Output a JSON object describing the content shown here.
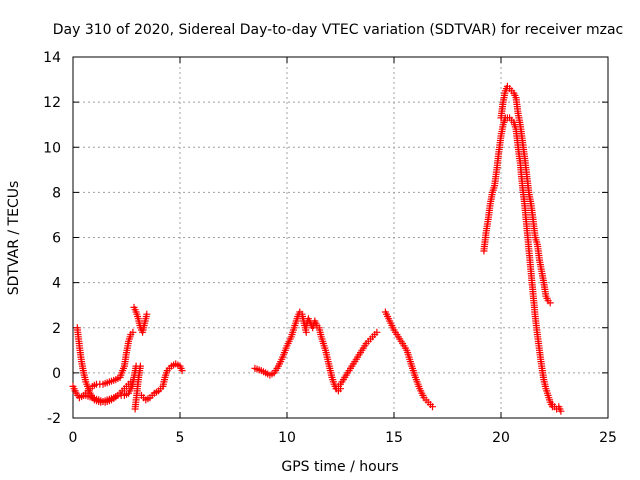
{
  "chart_data": {
    "type": "scatter",
    "title": "Day 310 of 2020, Sidereal Day-to-day VTEC variation (SDTVAR) for receiver mzac",
    "xlabel": "GPS time / hours",
    "ylabel": "SDTVAR / TECUs",
    "xlim": [
      0,
      25
    ],
    "ylim": [
      -2,
      14
    ],
    "xticks": [
      0,
      5,
      10,
      15,
      20,
      25
    ],
    "yticks": [
      -2,
      0,
      2,
      4,
      6,
      8,
      10,
      12,
      14
    ],
    "grid": true,
    "marker": "+",
    "colors": {
      "series": "#ff0000",
      "grid": "#a0a0a0",
      "axis": "#000000"
    },
    "series": [
      {
        "name": "SDTVAR",
        "segments": [
          [
            [
              0.0,
              -0.6
            ],
            [
              0.15,
              -0.9
            ],
            [
              0.3,
              -1.1
            ],
            [
              0.5,
              -1.0
            ],
            [
              0.7,
              -0.8
            ],
            [
              0.9,
              -0.6
            ],
            [
              1.1,
              -0.5
            ],
            [
              1.4,
              -0.5
            ],
            [
              1.7,
              -0.4
            ],
            [
              2.0,
              -0.3
            ],
            [
              2.2,
              -0.2
            ],
            [
              2.4,
              0.3
            ],
            [
              2.5,
              0.9
            ],
            [
              2.6,
              1.4
            ],
            [
              2.7,
              1.7
            ],
            [
              2.8,
              1.8
            ]
          ],
          [
            [
              0.2,
              2.0
            ],
            [
              0.3,
              1.2
            ],
            [
              0.4,
              0.5
            ],
            [
              0.5,
              0.0
            ],
            [
              0.6,
              -0.4
            ],
            [
              0.8,
              -0.9
            ],
            [
              1.0,
              -1.2
            ],
            [
              1.3,
              -1.3
            ],
            [
              1.6,
              -1.2
            ],
            [
              1.9,
              -1.1
            ],
            [
              2.1,
              -1.0
            ],
            [
              2.3,
              -0.8
            ],
            [
              2.5,
              -0.6
            ],
            [
              2.7,
              -0.4
            ],
            [
              2.8,
              -0.5
            ]
          ],
          [
            [
              0.6,
              -1.0
            ],
            [
              0.9,
              -1.1
            ],
            [
              1.2,
              -1.2
            ],
            [
              1.5,
              -1.3
            ],
            [
              1.8,
              -1.2
            ],
            [
              2.1,
              -1.0
            ],
            [
              2.4,
              -1.0
            ],
            [
              2.6,
              -0.9
            ],
            [
              2.75,
              -0.6
            ],
            [
              2.85,
              -0.2
            ],
            [
              2.95,
              0.3
            ]
          ],
          [
            [
              2.9,
              -1.6
            ],
            [
              2.95,
              -1.2
            ],
            [
              3.0,
              -0.8
            ],
            [
              3.05,
              -0.3
            ],
            [
              3.1,
              0.0
            ],
            [
              3.15,
              0.3
            ]
          ],
          [
            [
              2.85,
              2.9
            ],
            [
              2.95,
              2.7
            ],
            [
              3.05,
              2.4
            ],
            [
              3.15,
              2.0
            ],
            [
              3.25,
              1.8
            ],
            [
              3.35,
              2.2
            ],
            [
              3.45,
              2.6
            ]
          ],
          [
            [
              3.2,
              -1.0
            ],
            [
              3.4,
              -1.2
            ],
            [
              3.6,
              -1.1
            ],
            [
              3.8,
              -0.9
            ],
            [
              4.0,
              -0.8
            ],
            [
              4.2,
              -0.6
            ],
            [
              4.3,
              -0.2
            ],
            [
              4.4,
              0.1
            ],
            [
              4.6,
              0.3
            ],
            [
              4.8,
              0.4
            ],
            [
              5.0,
              0.3
            ],
            [
              5.1,
              0.1
            ]
          ],
          [
            [
              8.5,
              0.2
            ],
            [
              8.8,
              0.1
            ],
            [
              9.0,
              0.0
            ],
            [
              9.2,
              -0.1
            ],
            [
              9.4,
              0.0
            ],
            [
              9.6,
              0.3
            ],
            [
              9.8,
              0.7
            ],
            [
              10.0,
              1.2
            ],
            [
              10.2,
              1.6
            ],
            [
              10.4,
              2.2
            ],
            [
              10.5,
              2.5
            ],
            [
              10.6,
              2.7
            ],
            [
              10.7,
              2.6
            ],
            [
              10.8,
              2.2
            ],
            [
              10.9,
              1.8
            ]
          ],
          [
            [
              10.9,
              2.1
            ],
            [
              11.0,
              2.4
            ],
            [
              11.1,
              2.2
            ],
            [
              11.2,
              2.0
            ],
            [
              11.3,
              2.3
            ],
            [
              11.4,
              2.1
            ],
            [
              11.5,
              2.0
            ],
            [
              11.6,
              1.6
            ],
            [
              11.7,
              1.3
            ],
            [
              11.8,
              1.0
            ],
            [
              11.9,
              0.6
            ],
            [
              12.0,
              0.2
            ],
            [
              12.1,
              -0.2
            ],
            [
              12.2,
              -0.5
            ],
            [
              12.3,
              -0.7
            ],
            [
              12.4,
              -0.8
            ],
            [
              12.5,
              -0.7
            ]
          ],
          [
            [
              12.3,
              -0.7
            ],
            [
              12.5,
              -0.5
            ],
            [
              12.7,
              -0.2
            ],
            [
              12.9,
              0.1
            ],
            [
              13.1,
              0.4
            ],
            [
              13.3,
              0.7
            ],
            [
              13.5,
              1.0
            ],
            [
              13.7,
              1.3
            ],
            [
              13.9,
              1.5
            ],
            [
              14.1,
              1.7
            ],
            [
              14.2,
              1.8
            ]
          ],
          [
            [
              14.6,
              2.7
            ],
            [
              14.8,
              2.3
            ],
            [
              15.0,
              1.9
            ],
            [
              15.2,
              1.6
            ],
            [
              15.4,
              1.3
            ],
            [
              15.6,
              1.0
            ],
            [
              15.8,
              0.4
            ],
            [
              16.0,
              -0.2
            ],
            [
              16.2,
              -0.7
            ],
            [
              16.4,
              -1.1
            ],
            [
              16.6,
              -1.3
            ],
            [
              16.8,
              -1.5
            ]
          ],
          [
            [
              19.2,
              5.4
            ],
            [
              19.3,
              6.2
            ],
            [
              19.4,
              6.8
            ],
            [
              19.5,
              7.5
            ],
            [
              19.6,
              8.0
            ],
            [
              19.7,
              8.3
            ],
            [
              19.8,
              9.0
            ],
            [
              19.9,
              9.8
            ],
            [
              20.0,
              10.5
            ],
            [
              20.1,
              11.0
            ],
            [
              20.2,
              11.3
            ],
            [
              20.3,
              11.3
            ],
            [
              20.4,
              11.3
            ],
            [
              20.5,
              11.2
            ],
            [
              20.6,
              11.1
            ],
            [
              20.7,
              10.8
            ],
            [
              20.8,
              10.0
            ],
            [
              20.9,
              9.3
            ],
            [
              21.0,
              8.3
            ],
            [
              21.1,
              7.5
            ],
            [
              21.2,
              6.5
            ],
            [
              21.3,
              5.5
            ],
            [
              21.4,
              4.5
            ],
            [
              21.5,
              3.5
            ],
            [
              21.6,
              2.5
            ],
            [
              21.7,
              1.7
            ],
            [
              21.8,
              1.0
            ],
            [
              21.9,
              0.3
            ],
            [
              22.0,
              -0.3
            ],
            [
              22.1,
              -0.7
            ],
            [
              22.2,
              -1.0
            ],
            [
              22.3,
              -1.3
            ],
            [
              22.4,
              -1.5
            ]
          ],
          [
            [
              20.0,
              11.3
            ],
            [
              20.1,
              12.0
            ],
            [
              20.2,
              12.5
            ],
            [
              20.3,
              12.7
            ],
            [
              20.4,
              12.6
            ],
            [
              20.5,
              12.5
            ],
            [
              20.6,
              12.4
            ],
            [
              20.7,
              12.2
            ],
            [
              20.8,
              11.5
            ],
            [
              20.9,
              11.0
            ],
            [
              21.0,
              10.3
            ],
            [
              21.1,
              9.6
            ],
            [
              21.2,
              8.8
            ],
            [
              21.3,
              8.0
            ],
            [
              21.4,
              7.5
            ],
            [
              21.5,
              6.8
            ],
            [
              21.6,
              6.0
            ],
            [
              21.7,
              5.7
            ],
            [
              21.8,
              5.0
            ],
            [
              21.9,
              4.5
            ],
            [
              22.0,
              4.0
            ],
            [
              22.1,
              3.4
            ],
            [
              22.2,
              3.2
            ],
            [
              22.3,
              3.1
            ]
          ],
          [
            [
              22.4,
              -1.4
            ],
            [
              22.5,
              -1.5
            ],
            [
              22.6,
              -1.6
            ],
            [
              22.7,
              -1.5
            ],
            [
              22.8,
              -1.7
            ]
          ]
        ]
      }
    ]
  }
}
